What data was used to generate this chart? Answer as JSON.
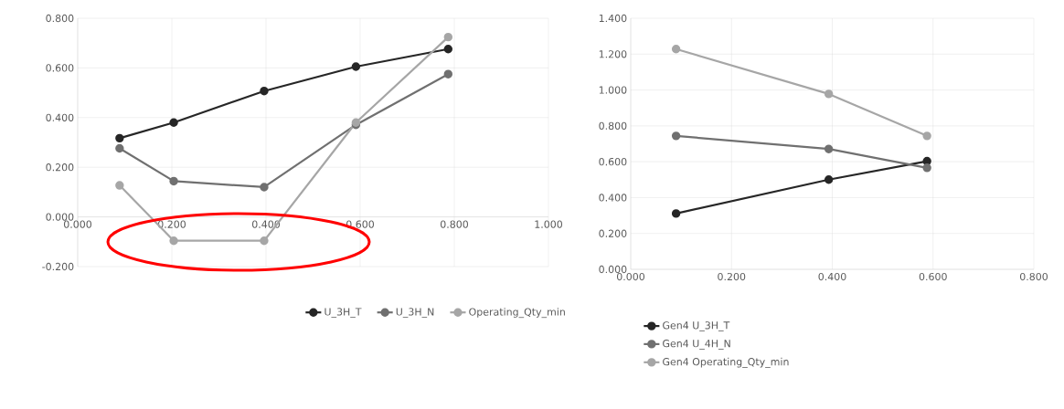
{
  "chart_data": [
    {
      "type": "line",
      "x": [
        0.089,
        0.204,
        0.396,
        0.591,
        0.787
      ],
      "marker": "circle",
      "line_style": "solid",
      "grid": true,
      "legend": "bottom",
      "xlim": [
        0,
        1.0
      ],
      "ylim": [
        -0.2,
        0.8
      ],
      "xticks": [
        {
          "value": 0,
          "label": "0.000"
        },
        {
          "value": 0.2,
          "label": "0.200"
        },
        {
          "value": 0.4,
          "label": "0.400"
        },
        {
          "value": 0.6,
          "label": "0.600"
        },
        {
          "value": 0.8,
          "label": "0.800"
        },
        {
          "value": 1.0,
          "label": "1.000"
        }
      ],
      "yticks": [
        {
          "value": -0.2,
          "label": "-0.200"
        },
        {
          "value": 0,
          "label": "0.000"
        },
        {
          "value": 0.2,
          "label": "0.200"
        },
        {
          "value": 0.4,
          "label": "0.400"
        },
        {
          "value": 0.6,
          "label": "0.600"
        },
        {
          "value": 0.8,
          "label": "0.800"
        }
      ],
      "series": [
        {
          "name": "U_3H_T",
          "color": "#262626",
          "values": [
            0.317,
            0.38,
            0.507,
            0.605,
            0.676
          ]
        },
        {
          "name": "U_3H_N",
          "color": "#707070",
          "values": [
            0.276,
            0.144,
            0.12,
            0.371,
            0.575
          ]
        },
        {
          "name": "Operating_Qty_min",
          "color": "#a6a6a6",
          "values": [
            0.127,
            -0.096,
            -0.096,
            0.38,
            0.724
          ]
        }
      ]
    },
    {
      "type": "line",
      "x": [
        0.09,
        0.393,
        0.588
      ],
      "marker": "circle",
      "line_style": "solid",
      "grid": true,
      "legend": "bottom",
      "xlim": [
        0,
        0.8
      ],
      "ylim": [
        0,
        1.4
      ],
      "xticks": [
        {
          "value": 0,
          "label": "0.000"
        },
        {
          "value": 0.2,
          "label": "0.200"
        },
        {
          "value": 0.4,
          "label": "0.400"
        },
        {
          "value": 0.6,
          "label": "0.600"
        },
        {
          "value": 0.8,
          "label": "0.800"
        }
      ],
      "yticks": [
        {
          "value": 0,
          "label": "0.000"
        },
        {
          "value": 0.2,
          "label": "0.200"
        },
        {
          "value": 0.4,
          "label": "0.400"
        },
        {
          "value": 0.6,
          "label": "0.600"
        },
        {
          "value": 0.8,
          "label": "0.800"
        },
        {
          "value": 1.0,
          "label": "1.000"
        },
        {
          "value": 1.2,
          "label": "1.200"
        },
        {
          "value": 1.4,
          "label": "1.400"
        }
      ],
      "series": [
        {
          "name": "Gen4 U_3H_T",
          "color": "#262626",
          "values": [
            0.311,
            0.5,
            0.603
          ]
        },
        {
          "name": "Gen4 U_4H_N",
          "color": "#707070",
          "values": [
            0.744,
            0.671,
            0.566
          ]
        },
        {
          "name": "Gen4 Operating_Qty_min",
          "color": "#a6a6a6",
          "values": [
            1.228,
            0.978,
            0.744
          ]
        }
      ]
    }
  ]
}
